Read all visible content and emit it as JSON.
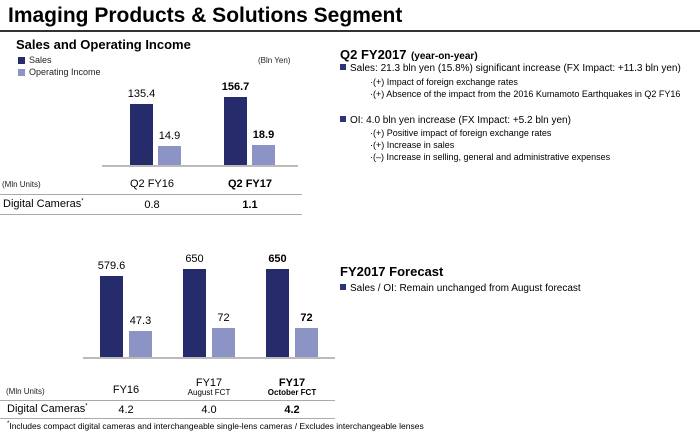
{
  "title": "Imaging Products & Solutions Segment",
  "colors": {
    "sales": "#262c6b",
    "operating_income": "#8b94c5"
  },
  "chart_data": [
    {
      "type": "bar",
      "title": "Sales and Operating Income",
      "unit": "(Bln Yen)",
      "categories": [
        "Q2 FY16",
        "Q2 FY17"
      ],
      "series": [
        {
          "name": "Sales",
          "values": [
            135.4,
            156.7
          ]
        },
        {
          "name": "Operating Income",
          "values": [
            14.9,
            18.9
          ]
        }
      ],
      "legend": "top-left"
    },
    {
      "type": "bar",
      "categories": [
        "FY16",
        "FY17",
        "FY17"
      ],
      "category_sublabels": [
        "",
        "August FCT",
        "October FCT"
      ],
      "series": [
        {
          "name": "Sales",
          "values": [
            579.6,
            650,
            650
          ]
        },
        {
          "name": "Operating Income",
          "values": [
            47.3,
            72,
            72
          ]
        }
      ]
    }
  ],
  "table1": {
    "unit": "(Mln Units)",
    "row_label": "Digital Cameras",
    "marker": "*",
    "values": [
      "0.8",
      "1.1"
    ]
  },
  "table2": {
    "unit": "(Mln Units)",
    "row_label": "Digital Cameras",
    "marker": "*",
    "values": [
      "4.2",
      "4.0",
      "4.2"
    ]
  },
  "footnote": {
    "marker": "*",
    "text": "Includes compact digital cameras and interchangeable single-lens cameras / Excludes interchangeable lenses"
  },
  "q2": {
    "heading": "Q2 FY2017",
    "heading_suffix": "(year-on-year)",
    "sales": "Sales: 21.3 bln yen (15.8%) significant increase (FX Impact: +11.3 bln yen)",
    "sales_items": [
      "·(+) Impact of foreign exchange rates",
      "·(+) Absence of the impact from the 2016 Kumamoto Earthquakes in Q2 FY16"
    ],
    "oi": "OI: 4.0 bln yen increase (FX Impact: +5.2 bln yen)",
    "oi_items": [
      "·(+) Positive impact of foreign exchange rates",
      "·(+) Increase in sales",
      "·(–) Increase in selling, general and administrative expenses"
    ]
  },
  "forecast": {
    "heading": "FY2017 Forecast",
    "item": "Sales / OI: Remain unchanged from August forecast"
  }
}
